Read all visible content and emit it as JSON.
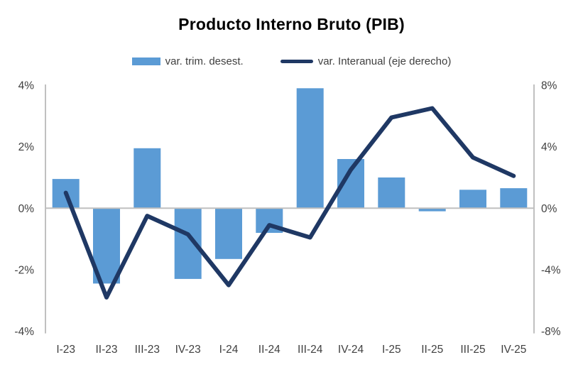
{
  "title": "Producto Interno Bruto (PIB)",
  "legend": {
    "bar_label": "var. trim. desest.",
    "line_label": "var. Interanual (eje derecho)"
  },
  "colors": {
    "bar": "#5B9BD5",
    "line": "#1F3864",
    "axis_line": "#C0C0C0",
    "tick_text": "#404040"
  },
  "chart_data": {
    "type": "bar",
    "subtype": "combo-bar-line-dual-axis",
    "title": "Producto Interno Bruto (PIB)",
    "categories": [
      "I-23",
      "II-23",
      "III-23",
      "IV-23",
      "I-24",
      "II-24",
      "III-24",
      "IV-24",
      "I-25",
      "II-25",
      "III-25",
      "IV-25"
    ],
    "series": [
      {
        "name": "var. trim. desest.",
        "type": "bar",
        "axis": "left",
        "color": "#5B9BD5",
        "values": [
          0.95,
          -2.45,
          1.95,
          -2.3,
          -1.65,
          -0.8,
          3.9,
          1.6,
          1.0,
          -0.1,
          0.6,
          0.65
        ]
      },
      {
        "name": "var. Interanual (eje derecho)",
        "type": "line",
        "axis": "right",
        "color": "#1F3864",
        "values": [
          1.0,
          -5.8,
          -0.5,
          -1.7,
          -5.0,
          -1.1,
          -1.9,
          2.5,
          5.9,
          6.5,
          3.3,
          2.1
        ]
      }
    ],
    "left_axis": {
      "min": -4,
      "max": 4,
      "tick_step": 2,
      "tick_labels": [
        "4%",
        "2%",
        "0%",
        "-2%",
        "-4%"
      ]
    },
    "right_axis": {
      "min": -8,
      "max": 8,
      "tick_step": 4,
      "tick_labels": [
        "8%",
        "4%",
        "0%",
        "-4%",
        "-8%"
      ]
    },
    "grid": "zero-line-only",
    "legend_position": "top-center"
  }
}
